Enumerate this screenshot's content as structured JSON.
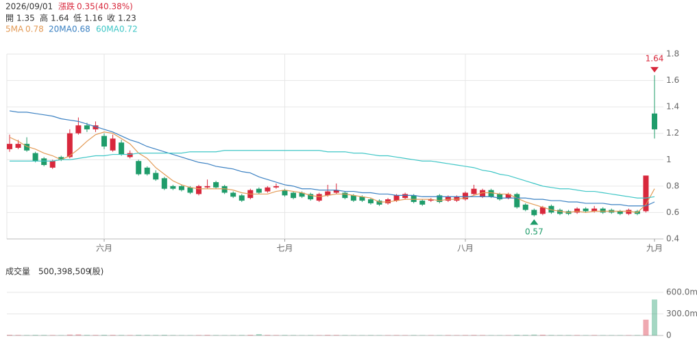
{
  "header": {
    "date": "2026/09/01",
    "change_label": "漲跌",
    "change": "0.35(40.38%)",
    "open_label": "開",
    "high_label": "高",
    "low_label": "低",
    "close_label": "收"
  },
  "chart_data": {
    "type": "candlestick",
    "categories": [
      null,
      null,
      null,
      null,
      null,
      null,
      null,
      null,
      null,
      null,
      null,
      "六月",
      null,
      null,
      null,
      null,
      null,
      null,
      null,
      null,
      null,
      null,
      null,
      null,
      null,
      null,
      null,
      null,
      null,
      null,
      null,
      null,
      "七月",
      null,
      null,
      null,
      null,
      null,
      null,
      null,
      null,
      null,
      null,
      null,
      null,
      null,
      null,
      null,
      null,
      null,
      null,
      null,
      null,
      "八月",
      null,
      null,
      null,
      null,
      null,
      null,
      null,
      null,
      null,
      null,
      null,
      null,
      null,
      null,
      null,
      null,
      null,
      null,
      null,
      null,
      null,
      "九月"
    ],
    "open": [
      1.08,
      1.09,
      1.12,
      1.05,
      1.01,
      0.94,
      1.02,
      1.02,
      1.2,
      1.26,
      1.23,
      1.18,
      1.07,
      1.13,
      1.02,
      0.99,
      0.94,
      0.9,
      0.86,
      0.8,
      0.8,
      0.79,
      0.74,
      0.79,
      0.83,
      0.8,
      0.75,
      0.73,
      0.71,
      0.78,
      0.76,
      0.79,
      0.77,
      0.75,
      0.75,
      0.74,
      0.69,
      0.73,
      0.75,
      0.75,
      0.73,
      0.72,
      0.7,
      0.69,
      0.67,
      0.69,
      0.71,
      0.73,
      0.69,
      0.69,
      0.73,
      0.69,
      0.69,
      0.7,
      0.74,
      0.72,
      0.77,
      0.74,
      0.71,
      0.74,
      0.66,
      0.62,
      0.59,
      0.65,
      0.62,
      0.61,
      0.6,
      0.63,
      0.61,
      0.63,
      0.62,
      0.61,
      0.59,
      0.61,
      0.61,
      1.35
    ],
    "high": [
      1.19,
      1.15,
      1.17,
      1.06,
      1.02,
      1.0,
      1.03,
      1.23,
      1.32,
      1.28,
      1.29,
      1.2,
      1.19,
      1.15,
      1.07,
      1.0,
      0.95,
      0.92,
      0.87,
      0.81,
      0.81,
      0.8,
      0.81,
      0.85,
      0.84,
      0.81,
      0.76,
      0.74,
      0.78,
      0.79,
      0.8,
      0.82,
      0.78,
      0.76,
      0.76,
      0.75,
      0.75,
      0.81,
      0.82,
      0.76,
      0.74,
      0.73,
      0.71,
      0.7,
      0.71,
      0.74,
      0.75,
      0.74,
      0.7,
      0.71,
      0.74,
      0.73,
      0.73,
      0.76,
      0.81,
      0.78,
      0.78,
      0.75,
      0.75,
      0.75,
      0.67,
      0.63,
      0.65,
      0.66,
      0.63,
      0.62,
      0.64,
      0.64,
      0.65,
      0.64,
      0.63,
      0.62,
      0.63,
      0.62,
      0.88,
      1.64
    ],
    "low": [
      1.06,
      1.08,
      1.06,
      0.98,
      0.95,
      0.93,
      0.99,
      1.01,
      1.19,
      1.21,
      1.21,
      1.08,
      1.06,
      1.03,
      1.01,
      0.88,
      0.88,
      0.84,
      0.77,
      0.77,
      0.76,
      0.74,
      0.73,
      0.78,
      0.78,
      0.74,
      0.71,
      0.68,
      0.7,
      0.74,
      0.75,
      0.78,
      0.72,
      0.7,
      0.71,
      0.69,
      0.68,
      0.72,
      0.74,
      0.7,
      0.68,
      0.68,
      0.66,
      0.65,
      0.66,
      0.68,
      0.7,
      0.67,
      0.65,
      0.68,
      0.67,
      0.68,
      0.68,
      0.69,
      0.73,
      0.71,
      0.71,
      0.69,
      0.7,
      0.63,
      0.61,
      0.57,
      0.58,
      0.59,
      0.58,
      0.58,
      0.59,
      0.6,
      0.6,
      0.59,
      0.59,
      0.58,
      0.58,
      0.58,
      0.6,
      1.16
    ],
    "close": [
      1.12,
      1.12,
      1.07,
      0.99,
      0.96,
      0.99,
      1.0,
      1.2,
      1.26,
      1.23,
      1.26,
      1.1,
      1.16,
      1.04,
      1.05,
      0.89,
      0.89,
      0.85,
      0.78,
      0.78,
      0.77,
      0.75,
      0.8,
      0.8,
      0.79,
      0.75,
      0.72,
      0.69,
      0.77,
      0.75,
      0.79,
      0.8,
      0.73,
      0.71,
      0.72,
      0.7,
      0.74,
      0.76,
      0.77,
      0.71,
      0.69,
      0.69,
      0.67,
      0.66,
      0.7,
      0.73,
      0.74,
      0.68,
      0.66,
      0.7,
      0.68,
      0.72,
      0.72,
      0.75,
      0.78,
      0.77,
      0.72,
      0.7,
      0.74,
      0.64,
      0.62,
      0.58,
      0.64,
      0.6,
      0.59,
      0.59,
      0.63,
      0.61,
      0.63,
      0.6,
      0.6,
      0.59,
      0.62,
      0.59,
      0.88,
      1.23
    ],
    "up_color": "#d8283c",
    "down_color": "#1f9c6a",
    "moving_averages": [
      {
        "name": "5MA",
        "color": "#e39a55",
        "values": [
          1.17,
          1.14,
          1.1,
          1.08,
          1.05,
          1.03,
          1.0,
          1.03,
          1.08,
          1.14,
          1.19,
          1.21,
          1.2,
          1.16,
          1.12,
          1.05,
          1.01,
          0.94,
          0.89,
          0.84,
          0.81,
          0.79,
          0.78,
          0.78,
          0.78,
          0.78,
          0.77,
          0.75,
          0.74,
          0.74,
          0.74,
          0.76,
          0.77,
          0.76,
          0.75,
          0.73,
          0.72,
          0.73,
          0.74,
          0.74,
          0.73,
          0.72,
          0.71,
          0.68,
          0.68,
          0.69,
          0.7,
          0.7,
          0.7,
          0.7,
          0.69,
          0.7,
          0.7,
          0.71,
          0.73,
          0.75,
          0.75,
          0.74,
          0.74,
          0.71,
          0.68,
          0.66,
          0.64,
          0.62,
          0.61,
          0.6,
          0.61,
          0.6,
          0.61,
          0.61,
          0.61,
          0.61,
          0.61,
          0.6,
          0.66,
          0.78
        ]
      },
      {
        "name": "20MA",
        "color": "#3a80c2",
        "values": [
          1.37,
          1.36,
          1.36,
          1.35,
          1.34,
          1.33,
          1.31,
          1.3,
          1.29,
          1.27,
          1.25,
          1.23,
          1.21,
          1.18,
          1.15,
          1.13,
          1.1,
          1.08,
          1.06,
          1.04,
          1.02,
          1.0,
          0.98,
          0.97,
          0.95,
          0.94,
          0.93,
          0.91,
          0.9,
          0.87,
          0.85,
          0.83,
          0.81,
          0.8,
          0.78,
          0.78,
          0.77,
          0.77,
          0.77,
          0.76,
          0.76,
          0.75,
          0.75,
          0.74,
          0.74,
          0.73,
          0.73,
          0.73,
          0.72,
          0.72,
          0.72,
          0.72,
          0.72,
          0.72,
          0.72,
          0.72,
          0.72,
          0.71,
          0.71,
          0.71,
          0.71,
          0.7,
          0.7,
          0.69,
          0.69,
          0.68,
          0.68,
          0.67,
          0.67,
          0.67,
          0.66,
          0.66,
          0.65,
          0.65,
          0.65,
          0.68
        ]
      },
      {
        "name": "60MA",
        "color": "#3ec6c6",
        "values": [
          0.99,
          0.99,
          0.99,
          0.99,
          0.99,
          0.99,
          1.0,
          1.0,
          1.01,
          1.02,
          1.03,
          1.03,
          1.04,
          1.04,
          1.04,
          1.05,
          1.05,
          1.05,
          1.05,
          1.05,
          1.05,
          1.06,
          1.06,
          1.06,
          1.06,
          1.07,
          1.07,
          1.07,
          1.07,
          1.07,
          1.07,
          1.07,
          1.07,
          1.07,
          1.07,
          1.07,
          1.07,
          1.06,
          1.06,
          1.06,
          1.05,
          1.05,
          1.04,
          1.03,
          1.03,
          1.02,
          1.01,
          1.0,
          0.99,
          0.99,
          0.98,
          0.97,
          0.96,
          0.95,
          0.94,
          0.92,
          0.91,
          0.89,
          0.88,
          0.86,
          0.84,
          0.82,
          0.8,
          0.79,
          0.78,
          0.78,
          0.77,
          0.76,
          0.76,
          0.75,
          0.74,
          0.73,
          0.72,
          0.71,
          0.71,
          0.72
        ]
      }
    ],
    "ylim": [
      0.4,
      1.8
    ],
    "yticks": [
      0.4,
      0.6,
      0.8,
      1,
      1.2,
      1.4,
      1.6,
      1.8
    ],
    "grid": true,
    "volume": {
      "title": "成交量",
      "readout": "500,398,509",
      "unit": "(股)",
      "values": [
        9000000,
        7000000,
        6000000,
        8000000,
        7000000,
        6000000,
        5000000,
        12000000,
        14000000,
        8000000,
        7000000,
        9000000,
        8000000,
        7000000,
        6000000,
        9000000,
        8000000,
        7000000,
        9000000,
        6000000,
        5000000,
        5000000,
        6000000,
        8000000,
        6000000,
        5000000,
        6000000,
        7000000,
        9000000,
        18000000,
        8000000,
        6000000,
        7000000,
        6000000,
        5000000,
        6000000,
        5000000,
        8000000,
        7000000,
        6000000,
        5000000,
        5000000,
        6000000,
        5000000,
        5000000,
        6000000,
        5000000,
        6000000,
        5000000,
        5000000,
        5000000,
        6000000,
        5000000,
        6000000,
        7000000,
        6000000,
        5000000,
        5000000,
        5000000,
        9000000,
        8000000,
        12000000,
        10000000,
        7000000,
        6000000,
        6000000,
        6000000,
        5000000,
        6000000,
        5000000,
        5000000,
        5000000,
        5000000,
        6000000,
        220000000,
        500398509
      ],
      "ylim": [
        0,
        600000000
      ],
      "yticks": [
        0,
        {
          "value": 300000000,
          "label": "300.0m"
        },
        {
          "value": 600000000,
          "label": "600.0m"
        }
      ]
    }
  }
}
